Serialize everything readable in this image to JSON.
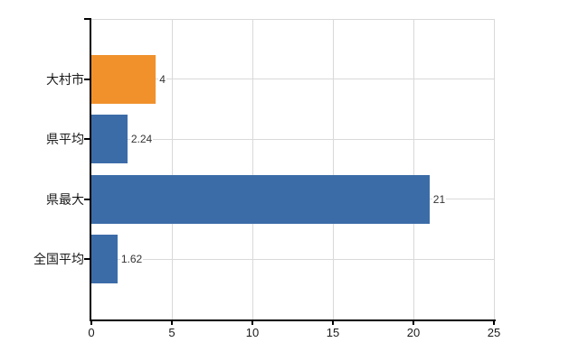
{
  "chart_data": {
    "type": "bar",
    "orientation": "horizontal",
    "title": "",
    "xlabel": "",
    "ylabel": "",
    "categories": [
      "大村市",
      "県平均",
      "県最大",
      "全国平均"
    ],
    "values": [
      4,
      2.24,
      21,
      1.62
    ],
    "value_labels": [
      "4",
      "2.24",
      "21",
      "1.62"
    ],
    "bar_colors": [
      "#f0912c",
      "#3c6ca8",
      "#3c6ca8",
      "#3c6ca8"
    ],
    "xlim": [
      0,
      25
    ],
    "x_ticks": [
      0,
      5,
      10,
      15,
      20,
      25
    ],
    "x_tick_labels": [
      "0",
      "5",
      "10",
      "15",
      "20",
      "25"
    ],
    "grid": "horizontal-and-vertical",
    "legend": "none",
    "colors": {
      "background": "#ffffff",
      "axis": "#000000",
      "gridline": "#d9d9d9",
      "tick_label": "#1a1a1a",
      "category_label": "#1a1a1a",
      "value_label": "#333333",
      "bar_default": "#3c6ca8",
      "bar_highlight": "#f0912c"
    }
  }
}
